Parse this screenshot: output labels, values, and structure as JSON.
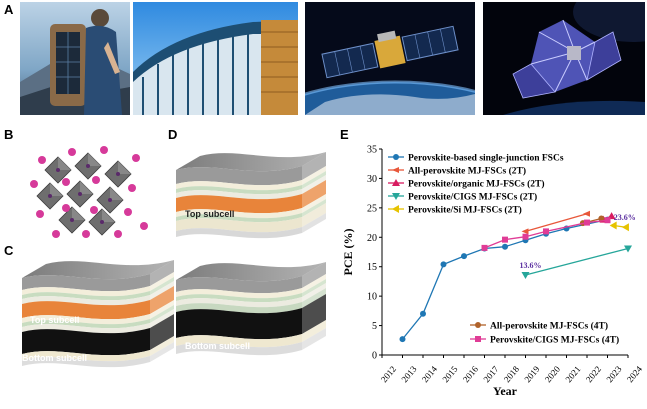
{
  "panels": {
    "a": "A",
    "b": "B",
    "c": "C",
    "d": "D",
    "e": "E"
  },
  "cells": {
    "d_top": "Top subcell",
    "c_top": "Top subcell",
    "c_bottom": "Bottom subcell",
    "single_bottom": "Bottom subcell"
  },
  "colors": {
    "perovskite_single": "#1f77b4",
    "all_perovskite_2t": "#e8573a",
    "perovskite_organic_2t": "#d81b60",
    "perovskite_cigs_2t": "#26a69a",
    "perovskite_si_2t": "#e6c300",
    "all_perovskite_4t": "#b0622a",
    "perovskite_cigs_4t": "#e03c96",
    "top_subcell": "#e8843a",
    "bottom_subcell": "#111111",
    "octahedra": "#6e6e6e",
    "a_site": "#d63a9a"
  },
  "chart_data": {
    "type": "line",
    "xlabel": "Year",
    "ylabel": "PCE (%)",
    "xlim": [
      2012,
      2024
    ],
    "ylim": [
      0,
      35
    ],
    "xticks": [
      2012,
      2013,
      2014,
      2015,
      2016,
      2017,
      2018,
      2019,
      2020,
      2021,
      2022,
      2023,
      2024
    ],
    "yticks": [
      0,
      5,
      10,
      15,
      20,
      25,
      30,
      35
    ],
    "legend_upper": "top-left",
    "legend_lower": "bottom-right",
    "series": [
      {
        "name": "Perovskite-based single-junction FSCs",
        "marker": "circle",
        "x": [
          2013,
          2014,
          2015,
          2016,
          2017,
          2018,
          2019,
          2020,
          2021,
          2023
        ],
        "y": [
          2.7,
          7.0,
          15.4,
          16.8,
          18.1,
          18.4,
          19.5,
          20.6,
          21.5,
          23.0
        ]
      },
      {
        "name": "All-perovskite MJ-FSCs (2T)",
        "marker": "arrow",
        "x": [
          2019,
          2022
        ],
        "y": [
          21.0,
          24.0
        ]
      },
      {
        "name": "Perovskite/organic MJ-FSCs (2T)",
        "marker": "triangle-up",
        "x": [
          2022.8,
          2023.2
        ],
        "y": [
          23.0,
          23.6
        ]
      },
      {
        "name": "Perovskite/CIGS MJ-FSCs (2T)",
        "marker": "triangle-down",
        "x": [
          2019,
          2024
        ],
        "y": [
          13.6,
          18.1
        ]
      },
      {
        "name": "Perovskite/Si MJ-FSCs (2T)",
        "marker": "triangle-left",
        "x": [
          2023.3,
          2023.9
        ],
        "y": [
          22.0,
          21.7
        ]
      },
      {
        "name": "All-perovskite MJ-FSCs (4T)",
        "marker": "circle",
        "x": [
          2021.8,
          2022.7
        ],
        "y": [
          22.4,
          23.2
        ]
      },
      {
        "name": "Perovskite/CIGS MJ-FSCs (4T)",
        "marker": "square",
        "x": [
          2017,
          2018,
          2019,
          2020,
          2022,
          2023
        ],
        "y": [
          18.2,
          19.6,
          20.1,
          21.0,
          22.5,
          22.9
        ]
      }
    ],
    "annotations": [
      {
        "text": "13.6%",
        "x": 2019,
        "y": 14.8
      },
      {
        "text": "23.6%",
        "x": 2023.6,
        "y": 22.9
      }
    ]
  }
}
